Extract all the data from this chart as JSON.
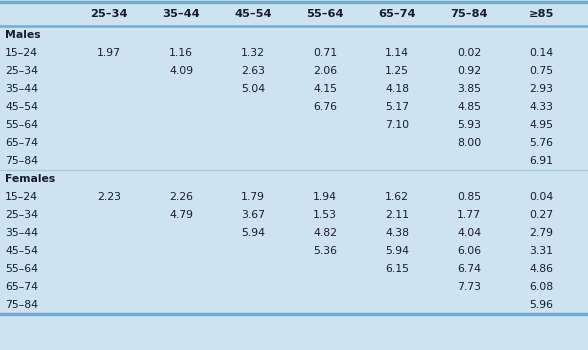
{
  "col_headers": [
    "25–34",
    "35–44",
    "45–54",
    "55–64",
    "65–74",
    "75–84",
    "≥85"
  ],
  "males_label": "Males",
  "females_label": "Females",
  "males_rows": [
    [
      "15–24",
      "1.97",
      "1.16",
      "1.32",
      "0.71",
      "1.14",
      "0.02",
      "0.14"
    ],
    [
      "25–34",
      "",
      "4.09",
      "2.63",
      "2.06",
      "1.25",
      "0.92",
      "0.75"
    ],
    [
      "35–44",
      "",
      "",
      "5.04",
      "4.15",
      "4.18",
      "3.85",
      "2.93"
    ],
    [
      "45–54",
      "",
      "",
      "",
      "6.76",
      "5.17",
      "4.85",
      "4.33"
    ],
    [
      "55–64",
      "",
      "",
      "",
      "",
      "7.10",
      "5.93",
      "4.95"
    ],
    [
      "65–74",
      "",
      "",
      "",
      "",
      "",
      "8.00",
      "5.76"
    ],
    [
      "75–84",
      "",
      "",
      "",
      "",
      "",
      "",
      "6.91"
    ]
  ],
  "females_rows": [
    [
      "15–24",
      "2.23",
      "2.26",
      "1.79",
      "1.94",
      "1.62",
      "0.85",
      "0.04"
    ],
    [
      "25–34",
      "",
      "4.79",
      "3.67",
      "1.53",
      "2.11",
      "1.77",
      "0.27"
    ],
    [
      "35–44",
      "",
      "",
      "5.94",
      "4.82",
      "4.38",
      "4.04",
      "2.79"
    ],
    [
      "45–54",
      "",
      "",
      "",
      "5.36",
      "5.94",
      "6.06",
      "3.31"
    ],
    [
      "55–64",
      "",
      "",
      "",
      "",
      "6.15",
      "6.74",
      "4.86"
    ],
    [
      "65–74",
      "",
      "",
      "",
      "",
      "",
      "7.73",
      "6.08"
    ],
    [
      "75–84",
      "",
      "",
      "",
      "",
      "",
      "",
      "5.96"
    ]
  ],
  "bg_color": "#cde4f0",
  "text_color": "#1a1a2e",
  "font_size": 7.8,
  "header_font_size": 8.2,
  "border_color": "#6aaed6",
  "sep_color": "#aacce0"
}
